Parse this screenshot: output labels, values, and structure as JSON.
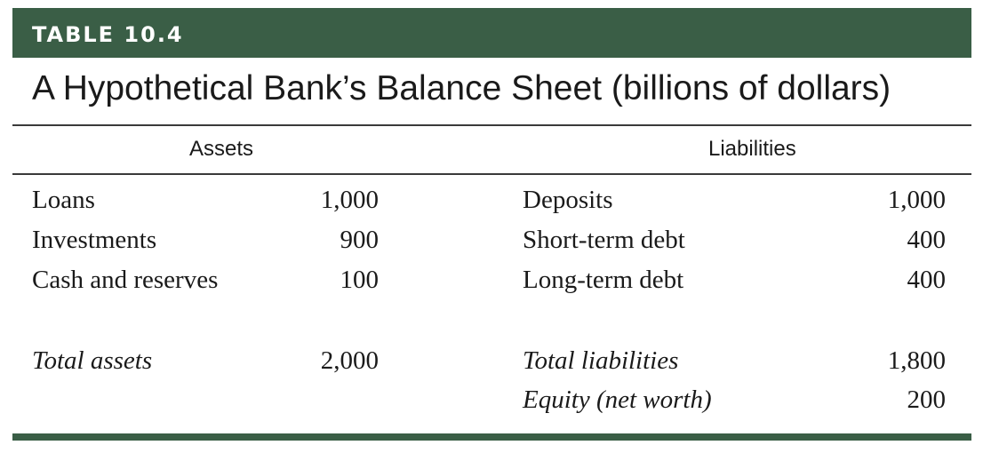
{
  "table_tag": "TABLE 10.4",
  "title": "A Hypothetical Bank’s Balance Sheet (billions of dollars)",
  "columns": {
    "assets": "Assets",
    "liabilities": "Liabilities"
  },
  "assets": [
    {
      "label": "Loans",
      "value": "1,000"
    },
    {
      "label": "Investments",
      "value": "900"
    },
    {
      "label": "Cash and reserves",
      "value": "100"
    }
  ],
  "liabilities": [
    {
      "label": "Deposits",
      "value": "1,000"
    },
    {
      "label": "Short-term debt",
      "value": "400"
    },
    {
      "label": "Long-term debt",
      "value": "400"
    }
  ],
  "totals": {
    "assets": {
      "label": "Total assets",
      "value": "2,000"
    },
    "liabilities": {
      "label": "Total liabilities",
      "value": "1,800"
    },
    "equity": {
      "label": "Equity (net worth)",
      "value": "200"
    }
  },
  "colors": {
    "accent": "#3a5e46",
    "text": "#1a1a1a"
  }
}
